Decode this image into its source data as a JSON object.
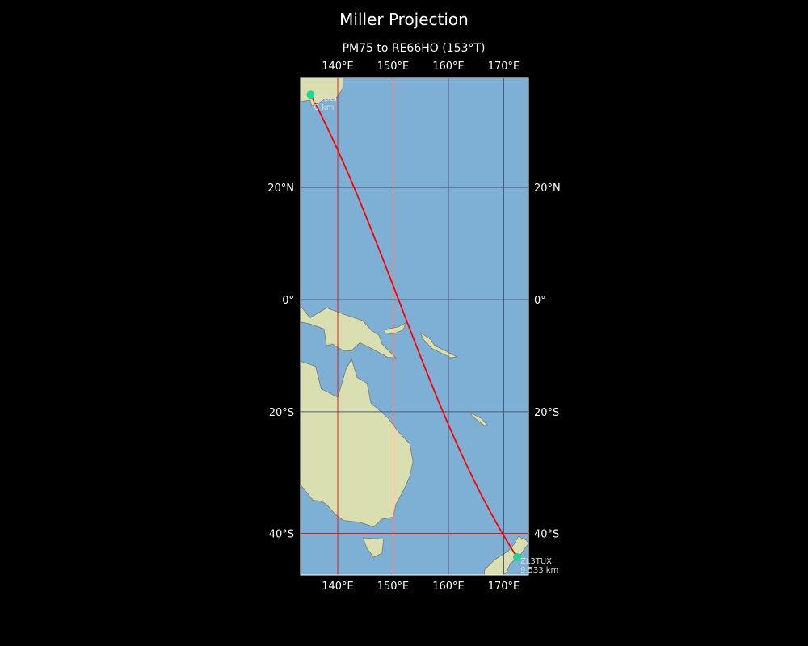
{
  "title": "Miller Projection",
  "subtitle": "PM75 to RE66HO (153°T)",
  "map": {
    "projection": "Miller",
    "extent": {
      "lon": [
        133.3,
        174.5
      ],
      "lat": [
        -46.4,
        38.4
      ]
    },
    "ocean_color": "#7eafd4",
    "land_color": "#d9dfb0",
    "meridian_color": "#d62020",
    "parallel_color": "#4a5a80",
    "path_color": "#ff0000",
    "marker_color": "#22d39a",
    "lon_ticks": [
      {
        "v": 140,
        "label": "140°E"
      },
      {
        "v": 150,
        "label": "150°E"
      },
      {
        "v": 160,
        "label": "160°E"
      },
      {
        "v": 170,
        "label": "170°E"
      }
    ],
    "lat_ticks": [
      {
        "v": 20,
        "label": "20°N"
      },
      {
        "v": 0,
        "label": "0°"
      },
      {
        "v": -20,
        "label": "20°S"
      },
      {
        "v": -40,
        "label": "40°S"
      }
    ],
    "red_meridians": [
      140,
      150
    ],
    "red_parallels": [
      -40
    ],
    "start": {
      "call": "JI3DLI",
      "dist": "0 km",
      "lon": 135.1,
      "lat": 35.5
    },
    "end": {
      "call": "ZL3TUX",
      "dist": "9,533 km",
      "lon": 172.4,
      "lat": -43.6
    }
  }
}
